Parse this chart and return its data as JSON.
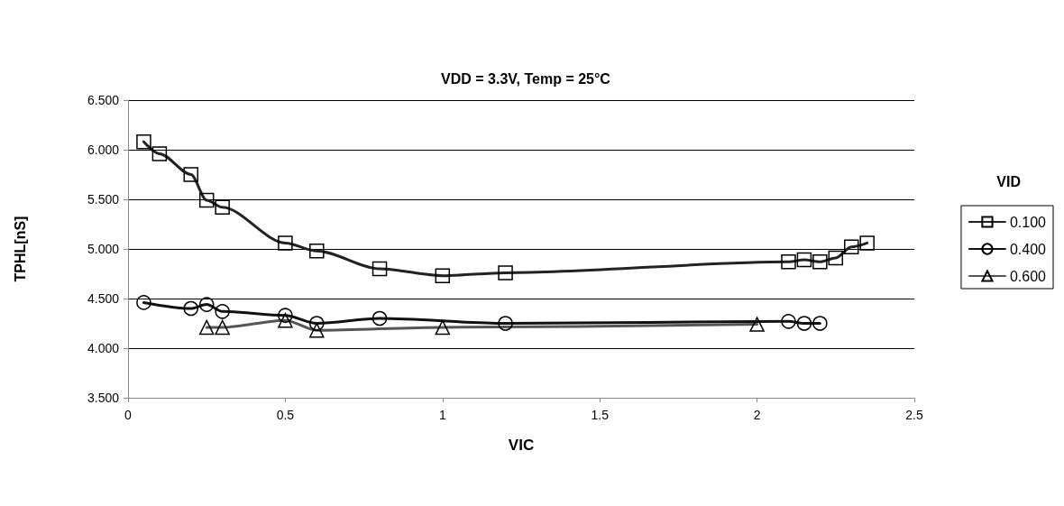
{
  "chart_data": {
    "type": "line",
    "title": "VDD = 3.3V, Temp = 25°C",
    "xlabel": "VIC",
    "ylabel": "TPHL[nS]",
    "legend_title": "VID",
    "legend": "right",
    "grid": "y",
    "line_style": "solid",
    "xlim": [
      0,
      2.5
    ],
    "xticks": [
      0,
      0.5,
      1,
      1.5,
      2,
      2.5
    ],
    "ylim": [
      3.5,
      6.5
    ],
    "yticks": [
      {
        "value": 3.5,
        "label": "3.500"
      },
      {
        "value": 4,
        "label": "4.000"
      },
      {
        "value": 4.5,
        "label": "4.500"
      },
      {
        "value": 5,
        "label": "5.000"
      },
      {
        "value": 5.5,
        "label": "5.500"
      },
      {
        "value": 6,
        "label": "6.000"
      },
      {
        "value": 6.5,
        "label": "6.500"
      }
    ],
    "series": [
      {
        "name": "0.100",
        "color": "#222222",
        "marker": "square",
        "x": [
          0.05,
          0.1,
          0.2,
          0.25,
          0.3,
          0.5,
          0.6,
          0.8,
          1.0,
          1.2,
          2.1,
          2.15,
          2.2,
          2.25,
          2.3,
          2.35
        ],
        "values": [
          6.08,
          5.96,
          5.75,
          5.49,
          5.42,
          5.06,
          4.98,
          4.8,
          4.73,
          4.76,
          4.87,
          4.89,
          4.87,
          4.91,
          5.02,
          5.06
        ]
      },
      {
        "name": "0.400",
        "color": "#111111",
        "marker": "circle",
        "x": [
          0.05,
          0.2,
          0.25,
          0.3,
          0.5,
          0.6,
          0.8,
          1.2,
          2.1,
          2.15,
          2.2
        ],
        "values": [
          4.46,
          4.4,
          4.44,
          4.37,
          4.33,
          4.25,
          4.3,
          4.25,
          4.27,
          4.25,
          4.25
        ]
      },
      {
        "name": "0.600",
        "color": "#555555",
        "marker": "triangle",
        "x": [
          0.25,
          0.3,
          0.5,
          0.6,
          1.0,
          2.0
        ],
        "values": [
          4.21,
          4.21,
          4.28,
          4.18,
          4.21,
          4.24
        ]
      }
    ]
  }
}
